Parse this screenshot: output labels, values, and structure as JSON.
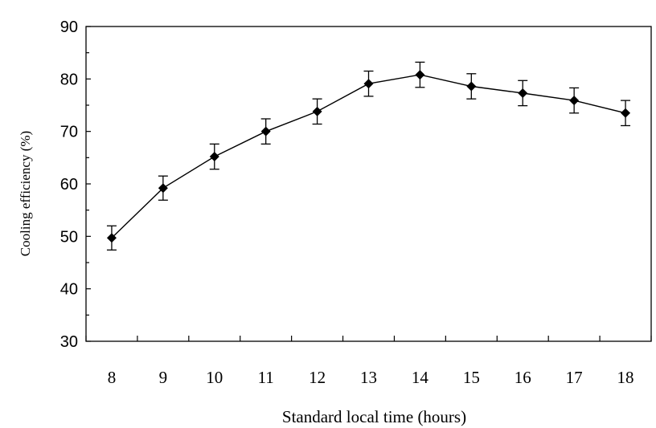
{
  "chart_data": {
    "type": "line",
    "title": "",
    "xlabel": "Standard local time (hours)",
    "ylabel": "Cooling efficiency (%)",
    "x": [
      8,
      9,
      10,
      11,
      12,
      13,
      14,
      15,
      16,
      17,
      18
    ],
    "xlim": [
      7.5,
      18.5
    ],
    "ylim": [
      30,
      90
    ],
    "yticks": [
      30,
      40,
      50,
      60,
      70,
      80,
      90
    ],
    "grid": false,
    "legend": "none",
    "series": [
      {
        "values": [
          49.7,
          59.2,
          65.2,
          70.0,
          73.8,
          79.1,
          80.8,
          78.6,
          77.3,
          75.9,
          73.5
        ],
        "error": [
          2.3,
          2.3,
          2.4,
          2.4,
          2.4,
          2.4,
          2.4,
          2.4,
          2.4,
          2.4,
          2.4
        ],
        "marker": "diamond",
        "color": "#000000"
      }
    ]
  }
}
